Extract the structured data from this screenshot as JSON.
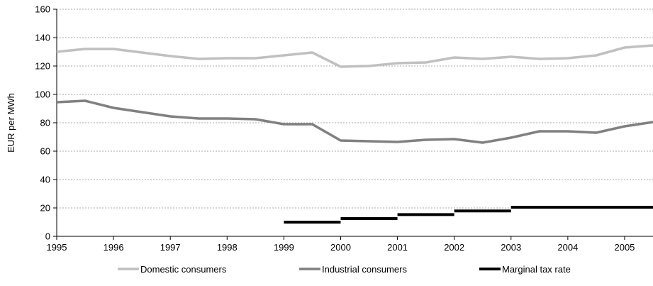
{
  "chart_data": {
    "type": "line",
    "title": "",
    "xlabel": "",
    "ylabel": "EUR per MWh",
    "xlim": [
      1995,
      2005.5
    ],
    "ylim": [
      0,
      160
    ],
    "x_ticks": [
      "1995",
      "1996",
      "1997",
      "1998",
      "1999",
      "2000",
      "2001",
      "2002",
      "2003",
      "2004",
      "2005"
    ],
    "y_ticks": [
      "0",
      "20",
      "40",
      "60",
      "80",
      "100",
      "120",
      "140",
      "160"
    ],
    "grid": "horizontal dashed",
    "legend_position": "bottom",
    "series": [
      {
        "name": "Domestic consumers",
        "color": "#c0c0c0",
        "x": [
          1995,
          1995.5,
          1996,
          1996.5,
          1997,
          1997.5,
          1998,
          1998.5,
          1999,
          1999.5,
          2000,
          2000.5,
          2001,
          2001.5,
          2002,
          2002.5,
          2003,
          2003.5,
          2004,
          2004.5,
          2005,
          2005.5
        ],
        "values": [
          130,
          132,
          132,
          129.5,
          127,
          125,
          125.5,
          125.5,
          127.5,
          129.5,
          119.5,
          120,
          122,
          122.5,
          126,
          125,
          126.5,
          125,
          125.5,
          127.5,
          133,
          134.5
        ]
      },
      {
        "name": "Industrial consumers",
        "color": "#808080",
        "x": [
          1995,
          1995.5,
          1996,
          1996.5,
          1997,
          1997.5,
          1998,
          1998.5,
          1999,
          1999.5,
          2000,
          2000.5,
          2001,
          2001.5,
          2002,
          2002.5,
          2003,
          2003.5,
          2004,
          2004.5,
          2005,
          2005.5
        ],
        "values": [
          94.5,
          95.5,
          90.5,
          87.5,
          84.5,
          83,
          83,
          82.5,
          79,
          79,
          67.5,
          67,
          66.5,
          68,
          68.5,
          66,
          69.5,
          74,
          74,
          73,
          77.5,
          80.5
        ]
      },
      {
        "name": "Marginal tax rate",
        "color": "#000000",
        "type": "step",
        "segments": [
          {
            "x0": 1999,
            "x1": 2000,
            "value": 10
          },
          {
            "x0": 2000,
            "x1": 2001,
            "value": 12.5
          },
          {
            "x0": 2001,
            "x1": 2002,
            "value": 15.3
          },
          {
            "x0": 2002,
            "x1": 2003,
            "value": 17.9
          },
          {
            "x0": 2003,
            "x1": 2005.5,
            "value": 20.5
          }
        ]
      }
    ]
  }
}
